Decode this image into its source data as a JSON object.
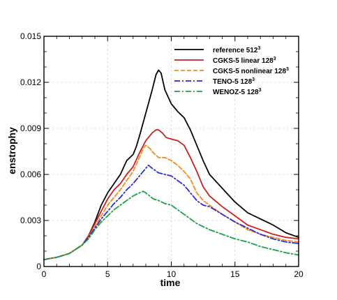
{
  "chart_data": {
    "type": "line",
    "title": "",
    "xlabel": "time",
    "ylabel": "enstrophy",
    "xlim": [
      0,
      20
    ],
    "ylim": [
      0,
      0.015
    ],
    "xticks": [
      0,
      5,
      10,
      15,
      20
    ],
    "xtick_labels": [
      "0",
      "5",
      "10",
      "15",
      "20"
    ],
    "yticks": [
      0,
      0.003,
      0.006,
      0.009,
      0.012,
      0.015
    ],
    "ytick_labels": [
      "0",
      "0.003",
      "0.006",
      "0.009",
      "0.012",
      "0.015"
    ],
    "grid": true,
    "legend_position": "top-right",
    "series": [
      {
        "name": "reference 512³",
        "label_base": "reference 512",
        "label_sup": "3",
        "color": "#000000",
        "dash": "solid",
        "x": [
          0,
          1,
          2,
          3,
          3.5,
          4,
          4.5,
          5,
          5.5,
          6,
          6.5,
          7,
          7.25,
          7.5,
          8,
          8.5,
          8.8,
          9,
          9.2,
          9.5,
          10,
          10.5,
          11,
          11.5,
          12,
          12.5,
          13,
          14,
          15,
          16,
          17,
          18,
          19,
          20
        ],
        "y": [
          0.00045,
          0.0006,
          0.00085,
          0.0014,
          0.002,
          0.0029,
          0.004,
          0.0048,
          0.0054,
          0.006,
          0.0069,
          0.0073,
          0.0078,
          0.0085,
          0.01,
          0.0115,
          0.0125,
          0.0128,
          0.0126,
          0.0115,
          0.0106,
          0.0101,
          0.0097,
          0.0089,
          0.0079,
          0.0069,
          0.006,
          0.0051,
          0.0042,
          0.0035,
          0.0031,
          0.0027,
          0.0022,
          0.0019
        ]
      },
      {
        "name": "CGKS-5 linear 128³",
        "label_base": "CGKS-5 linear 128",
        "label_sup": "3",
        "color": "#cc1f1f",
        "dash": "solid",
        "x": [
          0,
          1,
          2,
          3,
          3.5,
          4,
          4.5,
          5,
          5.5,
          6,
          6.5,
          7,
          7.5,
          8,
          8.5,
          8.8,
          9,
          9.3,
          9.6,
          10,
          10.5,
          11,
          11.5,
          12,
          12.5,
          13,
          14,
          15,
          16,
          17,
          18,
          19,
          20
        ],
        "y": [
          0.00045,
          0.0006,
          0.00085,
          0.0014,
          0.002,
          0.0028,
          0.0036,
          0.0044,
          0.005,
          0.0054,
          0.006,
          0.0065,
          0.0074,
          0.0082,
          0.0087,
          0.0089,
          0.0089,
          0.0087,
          0.0084,
          0.0083,
          0.0082,
          0.0079,
          0.0071,
          0.0062,
          0.0052,
          0.0046,
          0.0039,
          0.0033,
          0.0027,
          0.0024,
          0.0021,
          0.0019,
          0.0018
        ]
      },
      {
        "name": "CGKS-5 nonlinear 128³",
        "label_base": "CGKS-5 nonlinear 128",
        "label_sup": "3",
        "color": "#f28c1e",
        "dash": "dashed",
        "x": [
          0,
          1,
          2,
          3,
          3.5,
          4,
          4.5,
          5,
          5.5,
          6,
          6.5,
          7,
          7.5,
          7.8,
          8,
          8.3,
          8.6,
          9,
          9.5,
          10,
          10.5,
          11,
          11.5,
          12,
          12.5,
          13,
          14,
          15,
          16,
          17,
          18,
          19,
          20
        ],
        "y": [
          0.00045,
          0.0006,
          0.00085,
          0.0014,
          0.0019,
          0.0026,
          0.0033,
          0.004,
          0.0045,
          0.005,
          0.0056,
          0.0062,
          0.0071,
          0.0077,
          0.0079,
          0.0077,
          0.0074,
          0.0071,
          0.0071,
          0.0069,
          0.0066,
          0.0062,
          0.0057,
          0.0048,
          0.0043,
          0.004,
          0.0034,
          0.0029,
          0.0024,
          0.0021,
          0.0019,
          0.0017,
          0.0016
        ]
      },
      {
        "name": "TENO-5 128³",
        "label_base": "TENO-5 128",
        "label_sup": "3",
        "color": "#2b2be0",
        "dash": "dashdot",
        "x": [
          0,
          1,
          2,
          3,
          3.5,
          4,
          4.5,
          5,
          5.5,
          6,
          6.5,
          7,
          7.5,
          8,
          8.2,
          8.5,
          9,
          9.5,
          10,
          10.5,
          11,
          11.5,
          12,
          12.5,
          13,
          14,
          15,
          16,
          17,
          18,
          19,
          20
        ],
        "y": [
          0.00045,
          0.0006,
          0.00085,
          0.0014,
          0.0019,
          0.0025,
          0.0031,
          0.0036,
          0.0041,
          0.0045,
          0.005,
          0.0054,
          0.0059,
          0.0064,
          0.0066,
          0.0064,
          0.0061,
          0.006,
          0.0059,
          0.0056,
          0.0053,
          0.0048,
          0.0043,
          0.004,
          0.0039,
          0.0034,
          0.0029,
          0.0025,
          0.0021,
          0.0018,
          0.0016,
          0.0015
        ]
      },
      {
        "name": "WENOZ-5 128³",
        "label_base": "WENOZ-5 128",
        "label_sup": "3",
        "color": "#1aa04a",
        "dash": "dashdot",
        "x": [
          0,
          1,
          2,
          3,
          3.5,
          4,
          4.5,
          5,
          5.5,
          6,
          6.5,
          7,
          7.5,
          7.8,
          8,
          8.3,
          8.6,
          9,
          9.5,
          10,
          10.5,
          11,
          11.5,
          12,
          12.5,
          13,
          14,
          15,
          16,
          17,
          18,
          19,
          20
        ],
        "y": [
          0.00045,
          0.0006,
          0.00085,
          0.0014,
          0.0018,
          0.0024,
          0.0029,
          0.0033,
          0.0037,
          0.004,
          0.0043,
          0.0046,
          0.0048,
          0.0049,
          0.0048,
          0.0046,
          0.0044,
          0.0043,
          0.0041,
          0.004,
          0.0037,
          0.0034,
          0.0031,
          0.0028,
          0.0026,
          0.0024,
          0.0021,
          0.0018,
          0.0016,
          0.0013,
          0.0011,
          0.0009,
          0.00075
        ]
      }
    ]
  }
}
